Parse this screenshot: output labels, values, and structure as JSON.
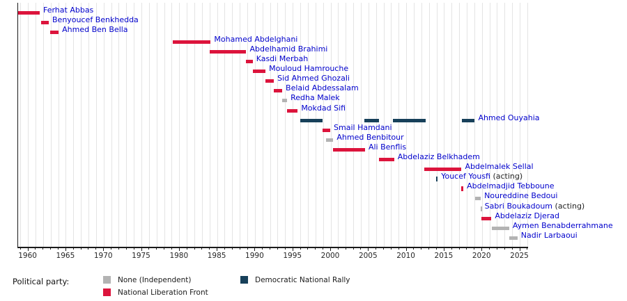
{
  "chart_data": {
    "type": "bar",
    "subtype": "horizontal-timeline-gantt",
    "title": "",
    "xlabel": "",
    "ylabel": "",
    "label_color": "#0000cc",
    "suffix_color": "#222222",
    "x_axis": {
      "domain_min": 1958.7,
      "domain_max": 2026.3,
      "major_ticks": [
        1960,
        1965,
        1970,
        1975,
        1980,
        1985,
        1990,
        1995,
        2000,
        2005,
        2010,
        2015,
        2020,
        2025
      ],
      "minor_tick_interval": 1,
      "gridline_interval": 1,
      "grid": true
    },
    "parties": {
      "none": {
        "label": "None (Independent)",
        "color": "#b3b3b3"
      },
      "fln": {
        "label": "National Liberation Front",
        "color": "#dc143c"
      },
      "rnd": {
        "label": "Democratic National Rally",
        "color": "#17405a"
      }
    },
    "legend": {
      "title": "Political party:",
      "position": "bottom",
      "entries_order": [
        "none",
        "fln",
        "rnd"
      ]
    },
    "people": [
      {
        "name": "Ferhat Abbas",
        "party": "fln",
        "terms": [
          [
            1958.7,
            1961.6
          ]
        ]
      },
      {
        "name": "Benyoucef Benkhedda",
        "party": "fln",
        "terms": [
          [
            1961.75,
            1962.8
          ]
        ]
      },
      {
        "name": "Ahmed Ben Bella",
        "party": "fln",
        "terms": [
          [
            1963.0,
            1964.1
          ]
        ]
      },
      {
        "name": "Mohamed Abdelghani",
        "party": "fln",
        "terms": [
          [
            1979.2,
            1984.2
          ]
        ]
      },
      {
        "name": "Abdelhamid Brahimi",
        "party": "fln",
        "terms": [
          [
            1984.1,
            1988.9
          ]
        ]
      },
      {
        "name": "Kasdi Merbah",
        "party": "fln",
        "terms": [
          [
            1988.85,
            1989.75
          ]
        ]
      },
      {
        "name": "Mouloud Hamrouche",
        "party": "fln",
        "terms": [
          [
            1989.75,
            1991.45
          ]
        ]
      },
      {
        "name": "Sid Ahmed Ghozali",
        "party": "fln",
        "terms": [
          [
            1991.45,
            1992.55
          ]
        ]
      },
      {
        "name": "Belaid Abdessalam",
        "party": "fln",
        "terms": [
          [
            1992.55,
            1993.65
          ]
        ]
      },
      {
        "name": "Redha Malek",
        "party": "none",
        "terms": [
          [
            1993.65,
            1994.3
          ]
        ]
      },
      {
        "name": "Mokdad Sifi",
        "party": "fln",
        "terms": [
          [
            1994.3,
            1995.7
          ]
        ]
      },
      {
        "name": "Ahmed Ouyahia",
        "party": "rnd",
        "terms": [
          [
            1996.0,
            1999.0
          ],
          [
            2004.5,
            2006.4
          ],
          [
            2008.3,
            2012.65
          ],
          [
            2017.4,
            2019.1
          ]
        ]
      },
      {
        "name": "Smail Hamdani",
        "party": "fln",
        "terms": [
          [
            1998.95,
            2000.0
          ]
        ]
      },
      {
        "name": "Ahmed Benbitour",
        "party": "none",
        "terms": [
          [
            1999.4,
            2000.4
          ]
        ]
      },
      {
        "name": "Ali Benflis",
        "party": "fln",
        "terms": [
          [
            2000.4,
            2004.6
          ]
        ]
      },
      {
        "name": "Abdelaziz Belkhadem",
        "party": "fln",
        "terms": [
          [
            2006.4,
            2008.45
          ]
        ]
      },
      {
        "name": "Abdelmalek Sellal",
        "party": "fln",
        "terms": [
          [
            2012.45,
            2017.35
          ]
        ]
      },
      {
        "name": "Youcef Yousfi",
        "suffix": "(acting)",
        "party": "rnd",
        "terms": [
          [
            2014.0,
            2014.2
          ]
        ]
      },
      {
        "name": "Abdelmadjid Tebboune",
        "party": "fln",
        "terms": [
          [
            2017.35,
            2017.6
          ]
        ]
      },
      {
        "name": "Noureddine Bedoui",
        "party": "none",
        "terms": [
          [
            2019.15,
            2019.9
          ]
        ]
      },
      {
        "name": "Sabri Boukadoum",
        "suffix": "(acting)",
        "party": "none",
        "terms": [
          [
            2019.85,
            2019.95
          ]
        ]
      },
      {
        "name": "Abdelaziz Djerad",
        "party": "fln",
        "terms": [
          [
            2019.95,
            2021.3
          ]
        ]
      },
      {
        "name": "Aymen Benabderrahmane",
        "party": "none",
        "terms": [
          [
            2021.4,
            2023.65
          ]
        ]
      },
      {
        "name": "Nadir Larbaoui",
        "party": "none",
        "terms": [
          [
            2023.65,
            2024.75
          ]
        ]
      }
    ]
  }
}
